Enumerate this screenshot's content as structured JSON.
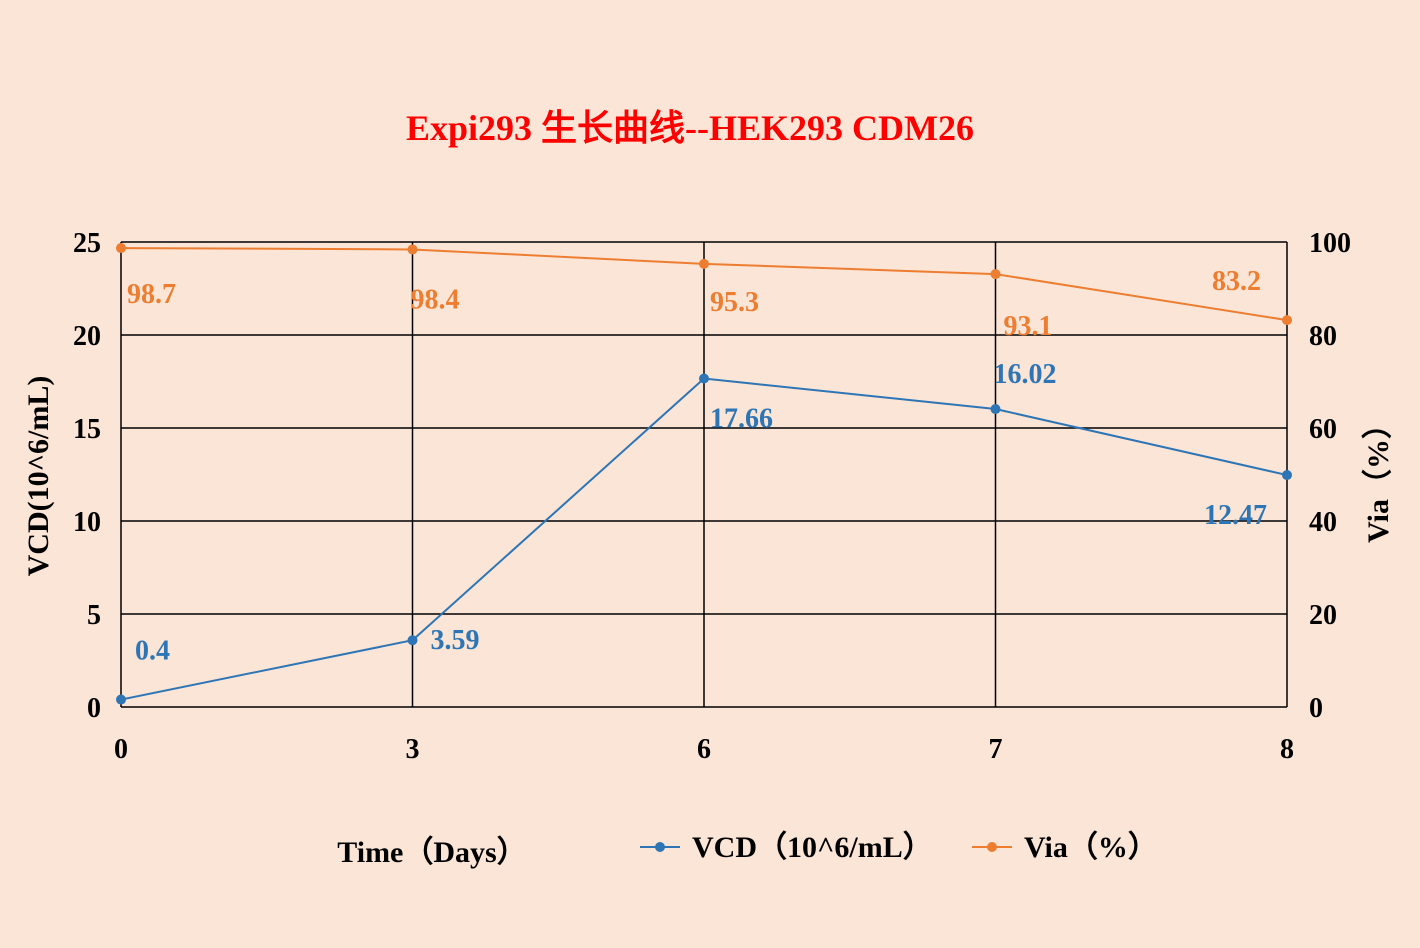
{
  "chart_data": {
    "type": "line",
    "title": "Expi293 生长曲线--HEK293 CDM26",
    "title_color": "#FF0000",
    "categories": [
      "0",
      "3",
      "6",
      "7",
      "8"
    ],
    "xlabel": "Time（Days）",
    "ylabel": "VCD(10^6/mL)",
    "y2label": "Via（%）",
    "ylim": [
      0,
      25
    ],
    "yticks": [
      0,
      5,
      10,
      15,
      20,
      25
    ],
    "y2lim": [
      0,
      100
    ],
    "y2ticks": [
      0,
      20,
      40,
      60,
      80,
      100
    ],
    "grid": true,
    "legend_position": "bottom",
    "series": [
      {
        "name": "VCD（10^6/mL）",
        "axis": "left",
        "color": "#2E75B6",
        "values": [
          0.4,
          3.59,
          17.66,
          16.02,
          12.47
        ],
        "labels": [
          "0.4",
          "3.59",
          "17.66",
          "16.02",
          "12.47"
        ]
      },
      {
        "name": "Via（%）",
        "axis": "right",
        "color": "#ED7D31",
        "values": [
          98.7,
          98.4,
          95.3,
          93.1,
          83.2
        ],
        "labels": [
          "98.7",
          "98.4",
          "95.3",
          "93.1",
          "83.2"
        ]
      }
    ]
  }
}
